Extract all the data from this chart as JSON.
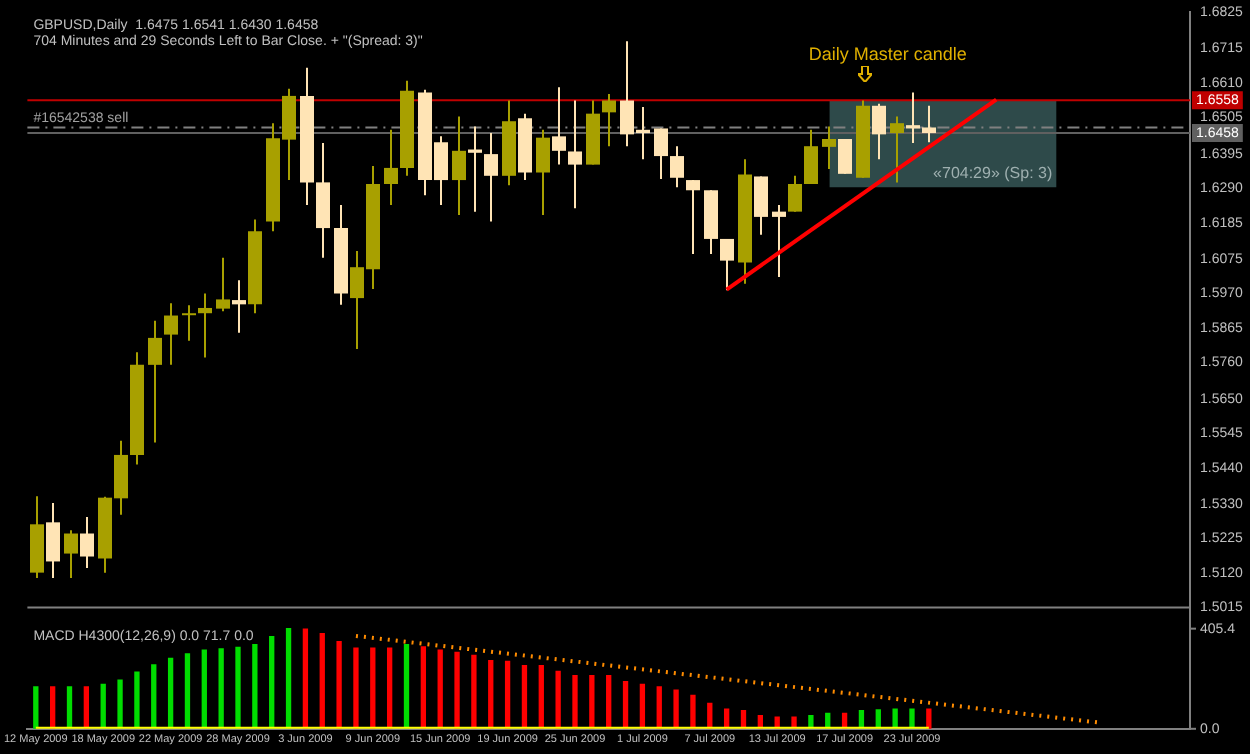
{
  "chart_data": {
    "type": "candlestick",
    "title": "GBPUSD,Daily  1.6475 1.6541 1.6430 1.6458",
    "subtitle": "704 Minutes and 29 Seconds Left to Bar Close. + \"(Spread: 3)\"",
    "categories": [
      "12 May 2009",
      null,
      null,
      null,
      "18 May 2009",
      null,
      null,
      null,
      "22 May 2009",
      null,
      null,
      null,
      "28 May 2009",
      null,
      null,
      null,
      "3 Jun 2009",
      null,
      null,
      null,
      "9 Jun 2009",
      null,
      null,
      null,
      "15 Jun 2009",
      null,
      null,
      null,
      "19 Jun 2009",
      null,
      null,
      null,
      "25 Jun 2009",
      null,
      null,
      null,
      "1 Jul 2009",
      null,
      null,
      null,
      "7 Jul 2009",
      null,
      null,
      null,
      "13 Jul 2009",
      null,
      null,
      null,
      "17 Jul 2009",
      null,
      null,
      null,
      "23 Jul 2009",
      null,
      null,
      null,
      null,
      null,
      null,
      null,
      null,
      null,
      null,
      null,
      null,
      null,
      null,
      null,
      null
    ],
    "ohlc": [
      [
        1.5121,
        1.5353,
        1.5105,
        1.5268
      ],
      [
        1.5274,
        1.5333,
        1.5105,
        1.5155
      ],
      [
        1.5179,
        1.525,
        1.5105,
        1.524
      ],
      [
        1.524,
        1.529,
        1.5135,
        1.517
      ],
      [
        1.5164,
        1.5352,
        1.5121,
        1.5349
      ],
      [
        1.5347,
        1.5522,
        1.5297,
        1.5479
      ],
      [
        1.5479,
        1.5791,
        1.545,
        1.5753
      ],
      [
        1.5753,
        1.5887,
        1.5517,
        1.5835
      ],
      [
        1.5845,
        1.594,
        1.5753,
        1.5903
      ],
      [
        1.591,
        1.5934,
        1.5826,
        1.591
      ],
      [
        1.591,
        1.597,
        1.5775,
        1.5926
      ],
      [
        1.5924,
        1.6079,
        1.5916,
        1.5952
      ],
      [
        1.595,
        1.601,
        1.5851,
        1.5937
      ],
      [
        1.5937,
        1.6195,
        1.591,
        1.6159
      ],
      [
        1.6189,
        1.6488,
        1.6159,
        1.6442
      ],
      [
        1.6438,
        1.6593,
        1.6315,
        1.6571
      ],
      [
        1.6571,
        1.6657,
        1.6239,
        1.6308
      ],
      [
        1.6308,
        1.6428,
        1.6079,
        1.6169
      ],
      [
        1.6169,
        1.6239,
        1.5936,
        1.597
      ],
      [
        1.5956,
        1.6099,
        1.5801,
        1.605
      ],
      [
        1.6044,
        1.6358,
        1.5984,
        1.6303
      ],
      [
        1.6303,
        1.6468,
        1.6239,
        1.6352
      ],
      [
        1.6352,
        1.6617,
        1.6328,
        1.6587
      ],
      [
        1.6581,
        1.659,
        1.6269,
        1.6315
      ],
      [
        1.643,
        1.6448,
        1.6239,
        1.6315
      ],
      [
        1.6315,
        1.6508,
        1.6209,
        1.6404
      ],
      [
        1.6408,
        1.6478,
        1.6219,
        1.6398
      ],
      [
        1.6394,
        1.6458,
        1.6189,
        1.6328
      ],
      [
        1.6328,
        1.6557,
        1.6299,
        1.6494
      ],
      [
        1.6503,
        1.6517,
        1.6315,
        1.6338
      ],
      [
        1.6338,
        1.6468,
        1.6209,
        1.6444
      ],
      [
        1.6448,
        1.6597,
        1.6362,
        1.6404
      ],
      [
        1.6402,
        1.6557,
        1.6229,
        1.6362
      ],
      [
        1.6362,
        1.6557,
        1.6362,
        1.6517
      ],
      [
        1.6521,
        1.6577,
        1.6418,
        1.6557
      ],
      [
        1.6557,
        1.6737,
        1.6418,
        1.6454
      ],
      [
        1.6468,
        1.6537,
        1.6378,
        1.6458
      ],
      [
        1.6472,
        1.6472,
        1.6318,
        1.6388
      ],
      [
        1.6388,
        1.6418,
        1.6293,
        1.6322
      ],
      [
        1.6315,
        1.6315,
        1.609,
        1.6284
      ],
      [
        1.6284,
        1.6284,
        1.609,
        1.6136
      ],
      [
        1.6136,
        1.6136,
        1.598,
        1.607
      ],
      [
        1.6064,
        1.6378,
        1.6,
        1.6332
      ],
      [
        1.6326,
        1.6326,
        1.6149,
        1.6203
      ],
      [
        1.6219,
        1.6239,
        1.602,
        1.6203
      ],
      [
        1.6219,
        1.6328,
        1.6219,
        1.6303
      ],
      [
        1.6303,
        1.6468,
        1.6303,
        1.6418
      ],
      [
        1.6416,
        1.6478,
        1.6349,
        1.644
      ],
      [
        1.644,
        1.644,
        1.6334,
        1.6334
      ],
      [
        1.6322,
        1.6557,
        1.6322,
        1.6541
      ],
      [
        1.6541,
        1.6547,
        1.6378,
        1.6454
      ],
      [
        1.6458,
        1.6508,
        1.6308,
        1.6488
      ],
      [
        1.6482,
        1.6581,
        1.6428,
        1.6472
      ],
      [
        1.6475,
        1.6541,
        1.643,
        1.6458
      ],
      null,
      null,
      null,
      null,
      null,
      null,
      null,
      null,
      null,
      null,
      null,
      null,
      null,
      null,
      null
    ],
    "colors": [
      "#a8a000",
      "#ffe4b5",
      "#a8a000",
      "#ffe4b5",
      "#a8a000",
      "#a8a000",
      "#a8a000",
      "#a8a000",
      "#a8a000",
      "#a8a000",
      "#a8a000",
      "#a8a000",
      "#ffe4b5",
      "#a8a000",
      "#a8a000",
      "#a8a000",
      "#ffe4b5",
      "#ffe4b5",
      "#ffe4b5",
      "#a8a000",
      "#a8a000",
      "#a8a000",
      "#a8a000",
      "#ffe4b5",
      "#ffe4b5",
      "#a8a000",
      "#ffe4b5",
      "#ffe4b5",
      "#a8a000",
      "#ffe4b5",
      "#a8a000",
      "#ffe4b5",
      "#ffe4b5",
      "#a8a000",
      "#a8a000",
      "#ffe4b5",
      "#ffe4b5",
      "#ffe4b5",
      "#ffe4b5",
      "#ffe4b5",
      "#ffe4b5",
      "#ffe4b5",
      "#a8a000",
      "#ffe4b5",
      "#ffe4b5",
      "#a8a000",
      "#a8a000",
      "#a8a000",
      "#ffe4b5",
      "#a8a000",
      "#ffe4b5",
      "#a8a000",
      "#ffe4b5",
      "#ffe4b5",
      null,
      null,
      null,
      null,
      null,
      null,
      null,
      null,
      null,
      null,
      null,
      null,
      null,
      null,
      null
    ],
    "series": [
      {
        "type": "line",
        "color": "#ff0000",
        "values": [
          null,
          null,
          null,
          null,
          null,
          null,
          null,
          null,
          null,
          null,
          null,
          null,
          null,
          null,
          null,
          null,
          null,
          null,
          null,
          null,
          null,
          null,
          null,
          null,
          null,
          null,
          null,
          null,
          null,
          null,
          null,
          null,
          null,
          null,
          null,
          null,
          null,
          null,
          null,
          null,
          null,
          1.5982,
          null,
          null,
          null,
          null,
          null,
          null,
          null,
          null,
          null,
          null,
          null,
          null,
          null,
          null,
          null,
          1.656,
          null,
          null,
          null,
          null,
          null,
          null,
          null,
          null,
          null,
          null,
          null
        ]
      },
      {
        "type": "bar",
        "axis": "y2",
        "colors": [
          "#00dd00",
          "#ff0000",
          "#00dd00",
          "#ff0000",
          "#00dd00",
          "#00dd00",
          "#00dd00",
          "#00dd00",
          "#00dd00",
          "#00dd00",
          "#00dd00",
          "#00dd00",
          "#00dd00",
          "#00dd00",
          "#00dd00",
          "#00dd00",
          "#ff0000",
          "#ff0000",
          "#ff0000",
          "#ff0000",
          "#ff0000",
          "#ff0000",
          "#00dd00",
          "#ff0000",
          "#ff0000",
          "#ff0000",
          "#ff0000",
          "#ff0000",
          "#ff0000",
          "#ff0000",
          "#ff0000",
          "#ff0000",
          "#ff0000",
          "#ff0000",
          "#ff0000",
          "#ff0000",
          "#ff0000",
          "#ff0000",
          "#ff0000",
          "#ff0000",
          "#ff0000",
          "#ff0000",
          "#ff0000",
          "#ff0000",
          "#ff0000",
          "#ff0000",
          "#00dd00",
          "#00dd00",
          "#ff0000",
          "#00dd00",
          "#00dd00",
          "#00dd00",
          "#00dd00",
          "#ff0000",
          null,
          null,
          null,
          null,
          null,
          null,
          null,
          null,
          null,
          null,
          null,
          null,
          null,
          null,
          null
        ],
        "values": [
          170,
          170,
          170,
          170,
          180,
          197,
          229,
          259,
          285,
          303,
          318,
          323,
          329,
          341,
          373,
          405,
          403,
          385,
          353,
          326,
          326,
          326,
          341,
          332,
          318,
          309,
          297,
          276,
          273,
          256,
          256,
          232,
          215,
          215,
          215,
          191,
          180,
          170,
          156,
          135,
          103,
          79,
          73,
          53,
          47,
          47,
          53,
          62,
          62,
          73,
          76,
          79,
          79,
          79,
          null,
          null,
          null,
          null,
          null,
          null,
          null,
          null,
          null,
          null,
          null,
          null,
          null,
          null,
          null
        ]
      },
      {
        "type": "line",
        "axis": "y2",
        "color": "#ffff00",
        "values": [
          0,
          0,
          0,
          0,
          0,
          0,
          0,
          0,
          0,
          0,
          0,
          0,
          0,
          0,
          0,
          0,
          0,
          0,
          0,
          0,
          0,
          0,
          0,
          0,
          0,
          0,
          0,
          0,
          0,
          0,
          0,
          0,
          0,
          0,
          0,
          0,
          0,
          0,
          0,
          0,
          0,
          0,
          0,
          0,
          0,
          0,
          0,
          0,
          0,
          0,
          0,
          0,
          0,
          0,
          null,
          null,
          null,
          null,
          null,
          null,
          null,
          null,
          null,
          null,
          null,
          null,
          null,
          null,
          null
        ]
      },
      {
        "type": "line",
        "axis": "y2",
        "color": "#ff8c00",
        "line_style": "dotted",
        "values": [
          null,
          null,
          null,
          null,
          null,
          null,
          null,
          null,
          null,
          null,
          null,
          null,
          null,
          null,
          null,
          null,
          null,
          null,
          null,
          376,
          null,
          null,
          null,
          null,
          null,
          null,
          null,
          null,
          null,
          null,
          null,
          null,
          null,
          null,
          null,
          null,
          null,
          null,
          null,
          null,
          null,
          null,
          null,
          null,
          null,
          null,
          null,
          null,
          null,
          null,
          null,
          null,
          null,
          null,
          null,
          null,
          null,
          null,
          null,
          null,
          null,
          null,
          null,
          26,
          null,
          null,
          null,
          null,
          null
        ]
      }
    ],
    "ylim": [
      1.4646,
      1.6825
    ],
    "yticks": [
      {
        "value": 1.5015,
        "label": "1.5015"
      },
      {
        "value": 1.512,
        "label": "1.5120"
      },
      {
        "value": 1.5225,
        "label": "1.5225"
      },
      {
        "value": 1.533,
        "label": "1.5330"
      },
      {
        "value": 1.544,
        "label": "1.5440"
      },
      {
        "value": 1.5545,
        "label": "1.5545"
      },
      {
        "value": 1.565,
        "label": "1.5650"
      },
      {
        "value": 1.576,
        "label": "1.5760"
      },
      {
        "value": 1.5865,
        "label": "1.5865"
      },
      {
        "value": 1.597,
        "label": "1.5970"
      },
      {
        "value": 1.6075,
        "label": "1.6075"
      },
      {
        "value": 1.6185,
        "label": "1.6185"
      },
      {
        "value": 1.629,
        "label": "1.6290"
      },
      {
        "value": 1.6395,
        "label": "1.6395"
      },
      {
        "value": 1.6505,
        "label": "1.6505"
      },
      {
        "value": 1.661,
        "label": "1.6610"
      },
      {
        "value": 1.6715,
        "label": "1.6715"
      },
      {
        "value": 1.6825,
        "label": "1.6825"
      }
    ],
    "y2lim": [
      0,
      2900
    ],
    "y2ticks": [
      {
        "value": 0,
        "label": "0.0"
      },
      405.4
    ],
    "ref_lines": [
      {
        "axis": "y",
        "value": 1.6558,
        "label": "1.6558",
        "color": "#c00000",
        "line_style": "solid"
      },
      {
        "axis": "y",
        "value": 1.6475,
        "label": "#16542538 sell",
        "color": "#808080",
        "line_style": "dashed"
      },
      {
        "axis": "y",
        "value": 1.6458,
        "label": "1.6458",
        "color": "#606060",
        "line_style": "solid"
      },
      {
        "axis": "y",
        "value": 1.5015,
        "color": "#808080",
        "line_style": "solid"
      }
    ],
    "bands": [
      {
        "axis": "y",
        "from": 1.6293,
        "to": 1.6558,
        "label": "«704:29» (Sp: 3)",
        "color": "#2e4a4a"
      }
    ],
    "annotations": [
      "Daily Master candle",
      "MACD H4300(12,26,9) 0.0 71.7 0.0"
    ]
  }
}
